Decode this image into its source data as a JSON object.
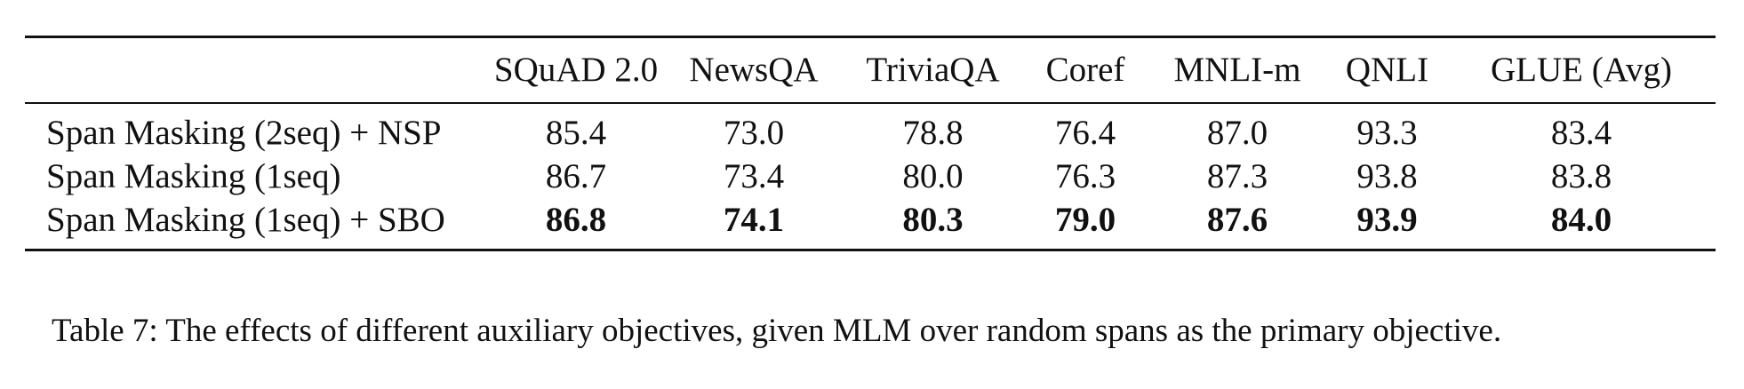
{
  "table": {
    "columns": [
      "",
      "SQuAD 2.0",
      "NewsQA",
      "TriviaQA",
      "Coref",
      "MNLI-m",
      "QNLI",
      "GLUE (Avg)"
    ],
    "rows": [
      {
        "label": "Span Masking (2seq) + NSP",
        "values": [
          "85.4",
          "73.0",
          "78.8",
          "76.4",
          "87.0",
          "93.3",
          "83.4"
        ]
      },
      {
        "label": "Span Masking (1seq)",
        "values": [
          "86.7",
          "73.4",
          "80.0",
          "76.3",
          "87.3",
          "93.8",
          "83.8"
        ]
      },
      {
        "label": "Span Masking (1seq) + SBO",
        "values": [
          "86.8",
          "74.1",
          "80.3",
          "79.0",
          "87.6",
          "93.9",
          "84.0"
        ],
        "bold": true
      }
    ]
  },
  "caption": "Table 7: The effects of different auxiliary objectives, given MLM over random spans as the primary objective."
}
